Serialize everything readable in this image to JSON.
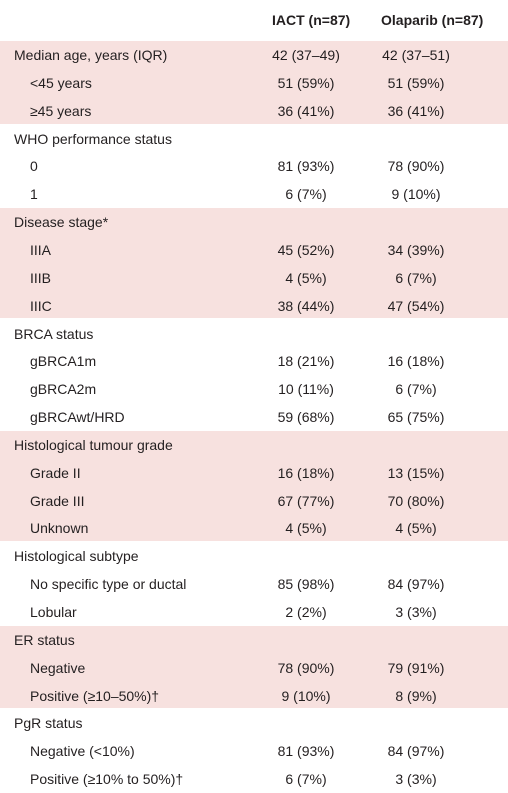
{
  "table": {
    "columns": [
      "IACT (n=87)",
      "Olaparib (n=87)"
    ],
    "sections": [
      {
        "title": "Median age, years (IQR)",
        "values": [
          "42 (37–49)",
          "42 (37–51)"
        ],
        "rows": [
          {
            "label": "<45 years",
            "values": [
              "51 (59%)",
              "51 (59%)"
            ]
          },
          {
            "label": "≥45 years",
            "values": [
              "36 (41%)",
              "36 (41%)"
            ]
          }
        ]
      },
      {
        "title": "WHO performance status",
        "rows": [
          {
            "label": "0",
            "values": [
              "81 (93%)",
              "78 (90%)"
            ]
          },
          {
            "label": "1",
            "values": [
              "6 (7%)",
              "9 (10%)"
            ]
          }
        ]
      },
      {
        "title": "Disease stage*",
        "rows": [
          {
            "label": "IIIA",
            "values": [
              "45 (52%)",
              "34 (39%)"
            ]
          },
          {
            "label": "IIIB",
            "values": [
              "4 (5%)",
              "6 (7%)"
            ]
          },
          {
            "label": "IIIC",
            "values": [
              "38 (44%)",
              "47 (54%)"
            ]
          }
        ]
      },
      {
        "title": "BRCA status",
        "rows": [
          {
            "label": "gBRCA1m",
            "values": [
              "18 (21%)",
              "16 (18%)"
            ]
          },
          {
            "label": "gBRCA2m",
            "values": [
              "10 (11%)",
              "6 (7%)"
            ]
          },
          {
            "label": "gBRCAwt/HRD",
            "values": [
              "59 (68%)",
              "65 (75%)"
            ]
          }
        ]
      },
      {
        "title": "Histological tumour grade",
        "rows": [
          {
            "label": "Grade II",
            "values": [
              "16 (18%)",
              "13 (15%)"
            ]
          },
          {
            "label": "Grade III",
            "values": [
              "67 (77%)",
              "70 (80%)"
            ]
          },
          {
            "label": "Unknown",
            "values": [
              "4 (5%)",
              "4 (5%)"
            ]
          }
        ]
      },
      {
        "title": "Histological subtype",
        "rows": [
          {
            "label": "No specific type or ductal",
            "values": [
              "85 (98%)",
              "84 (97%)"
            ]
          },
          {
            "label": "Lobular",
            "values": [
              "2 (2%)",
              "3 (3%)"
            ]
          }
        ]
      },
      {
        "title": "ER status",
        "rows": [
          {
            "label": "Negative",
            "values": [
              "78 (90%)",
              "79 (91%)"
            ]
          },
          {
            "label": "Positive (≥10–50%)†",
            "values": [
              "9 (10%)",
              "8 (9%)"
            ]
          }
        ]
      },
      {
        "title": "PgR status",
        "rows": [
          {
            "label": "Negative (<10%)",
            "values": [
              "81 (93%)",
              "84 (97%)"
            ]
          },
          {
            "label": "Positive (≥10% to 50%)†",
            "values": [
              "6 (7%)",
              "3 (3%)"
            ]
          }
        ]
      }
    ]
  }
}
